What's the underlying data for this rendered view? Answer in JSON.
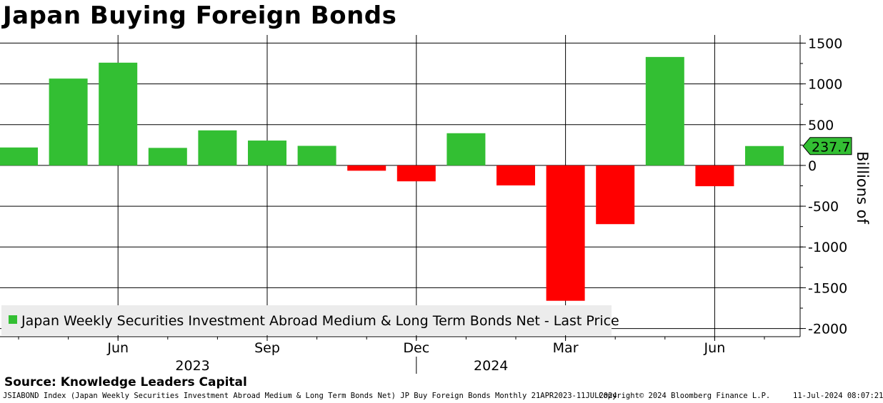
{
  "title": "Japan Buying Foreign Bonds",
  "source": "Source: Knowledge Leaders Capital",
  "footer": {
    "index_desc": "JSIABOND Index (Japan Weekly Securities Investment Abroad Medium & Long Term Bonds Net) JP Buy Foreign Bonds  Monthly 21APR2023-11JUL2024",
    "copyright": "Copyright© 2024 Bloomberg Finance L.P.",
    "timestamp": "11-Jul-2024 08:07:21"
  },
  "chart_data": {
    "type": "bar",
    "categories": [
      "2023-04",
      "2023-05",
      "2023-06",
      "2023-07",
      "2023-08",
      "2023-09",
      "2023-10",
      "2023-11",
      "2023-12",
      "2024-01",
      "2024-02",
      "2024-03",
      "2024-04",
      "2024-05",
      "2024-06",
      "2024-07"
    ],
    "values": [
      220,
      1065,
      1260,
      215,
      430,
      305,
      240,
      -65,
      -195,
      395,
      -245,
      -1660,
      -720,
      1330,
      -255,
      237.7
    ],
    "series_name": "Japan Weekly Securities Investment Abroad Medium & Long Term Bonds Net - Last Price",
    "last_value_label": "237.7",
    "ylabel": "Billions of",
    "ylim": [
      -2100,
      1600
    ],
    "yticks": [
      1500,
      1000,
      500,
      0,
      -500,
      -1000,
      -1500,
      -2000
    ],
    "x_tick_labels": [
      {
        "label": "Jun",
        "category": "2023-06"
      },
      {
        "label": "Sep",
        "category": "2023-09"
      },
      {
        "label": "Dec",
        "category": "2023-12"
      },
      {
        "label": "Mar",
        "category": "2024-03"
      },
      {
        "label": "Jun",
        "category": "2024-06"
      }
    ],
    "year_labels": [
      {
        "label": "2023",
        "category": "2023-08"
      },
      {
        "label": "2024",
        "category": "2024-02"
      }
    ],
    "grid": true,
    "legend_position": "bottom-left",
    "colors": {
      "positive": "#33bf33",
      "negative": "#ff0000",
      "last_tag": "#33bf33"
    }
  }
}
